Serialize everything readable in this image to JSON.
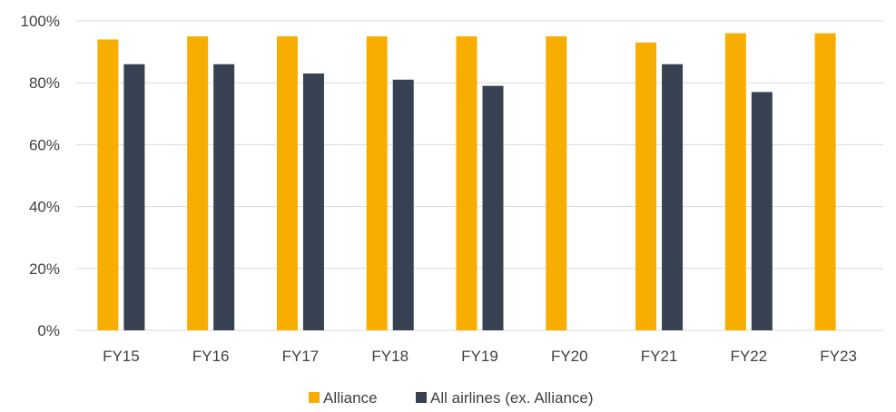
{
  "chart_data": {
    "type": "bar",
    "categories": [
      "FY15",
      "FY16",
      "FY17",
      "FY18",
      "FY19",
      "FY20",
      "FY21",
      "FY22",
      "FY23"
    ],
    "series": [
      {
        "name": "Alliance",
        "color": "#F7AE00",
        "values": [
          94,
          95,
          95,
          95,
          95,
          95,
          93,
          96,
          96
        ]
      },
      {
        "name": "All airlines (ex. Alliance)",
        "color": "#374151",
        "values": [
          86,
          86,
          83,
          81,
          79,
          null,
          86,
          77,
          null
        ]
      }
    ],
    "yticks": [
      "0%",
      "20%",
      "40%",
      "60%",
      "80%",
      "100%"
    ],
    "ylim": [
      0,
      100
    ],
    "grid": true,
    "legend_position": "bottom"
  }
}
